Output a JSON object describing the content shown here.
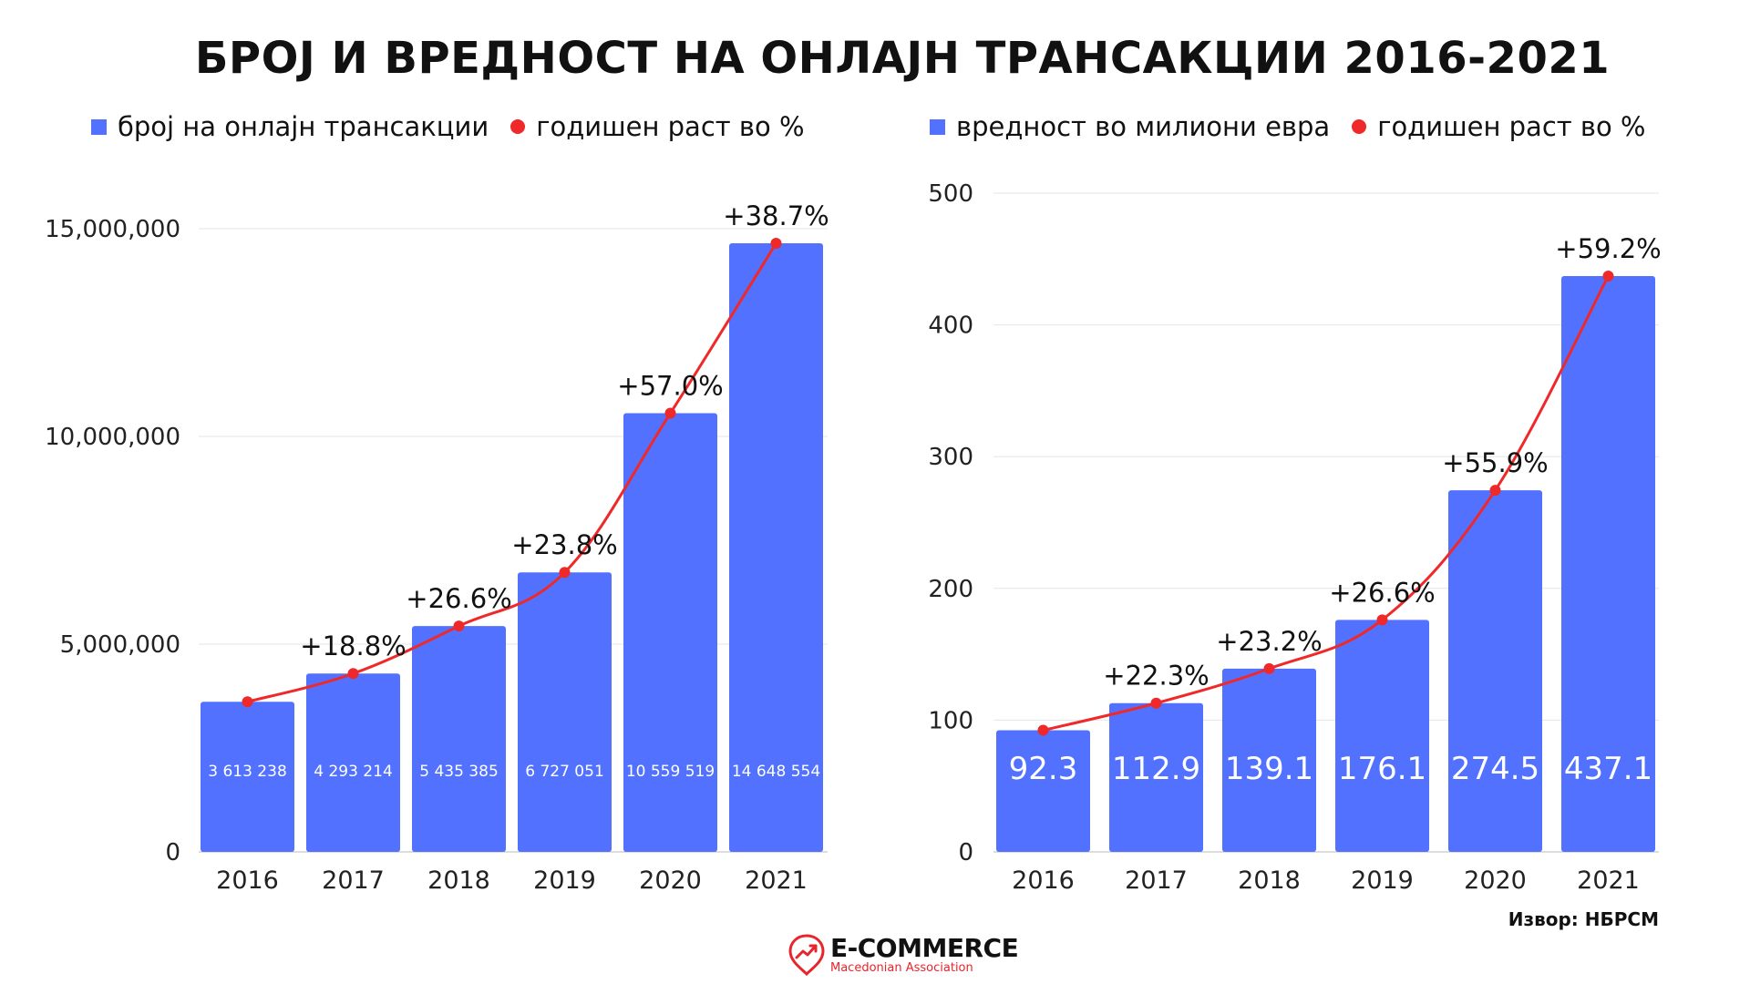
{
  "title": "БРОЈ И ВРЕДНОСТ НА ОНЛАЈН ТРАНСАКЦИИ 2016-2021",
  "colors": {
    "bar": "#5271ff",
    "line": "#ef2929",
    "grid": "#e6e6e6",
    "axis": "#bbbbbb"
  },
  "source": "Извор: НБРСМ",
  "logo": {
    "brand": "E-COMMERCE",
    "sub": "Macedonian Association",
    "icon": "trend-up-pin-icon"
  },
  "chart_data": [
    {
      "type": "bar",
      "legend": [
        "број на онлајн трансакции",
        "годишен раст во %"
      ],
      "categories": [
        "2016",
        "2017",
        "2018",
        "2019",
        "2020",
        "2021"
      ],
      "values": [
        3613238,
        4293214,
        5435385,
        6727051,
        10559519,
        14648554
      ],
      "value_labels": [
        "3 613 238",
        "4 293 214",
        "5 435 385",
        "6 727 051",
        "10 559 519",
        "14 648 554"
      ],
      "growth_labels": [
        "",
        "+18.8%",
        "+26.6%",
        "+23.8%",
        "+57.0%",
        "+38.7%"
      ],
      "yticks": [
        0,
        5000000,
        10000000,
        15000000
      ],
      "ytick_labels": [
        "0",
        "5,000,000",
        "10,000,000",
        "15,000,000"
      ],
      "ylim": [
        0,
        15000000
      ],
      "grid": true,
      "legend_position": "top"
    },
    {
      "type": "bar",
      "legend": [
        "вредност во милиони евра",
        "годишен раст во %"
      ],
      "categories": [
        "2016",
        "2017",
        "2018",
        "2019",
        "2020",
        "2021"
      ],
      "values": [
        92.3,
        112.9,
        139.1,
        176.1,
        274.5,
        437.1
      ],
      "value_labels": [
        "92.3",
        "112.9",
        "139.1",
        "176.1",
        "274.5",
        "437.1"
      ],
      "growth_labels": [
        "",
        "+22.3%",
        "+23.2%",
        "+26.6%",
        "+55.9%",
        "+59.2%"
      ],
      "yticks": [
        0,
        100,
        200,
        300,
        400,
        500
      ],
      "ytick_labels": [
        "0",
        "100",
        "200",
        "300",
        "400",
        "500"
      ],
      "ylim": [
        0,
        500
      ],
      "grid": true,
      "legend_position": "top"
    }
  ]
}
